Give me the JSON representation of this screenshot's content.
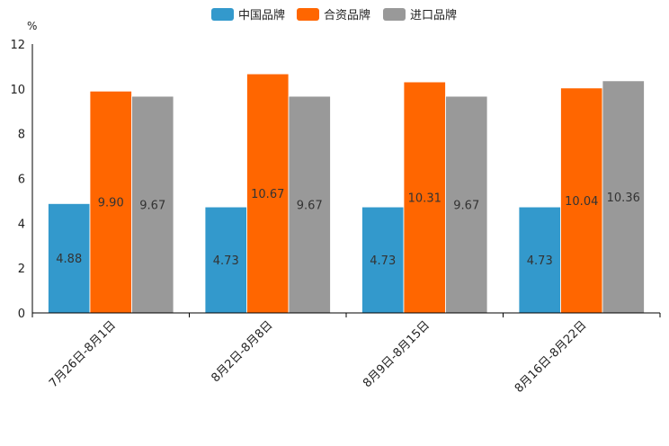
{
  "chart_data": {
    "type": "bar",
    "unit": "%",
    "categories": [
      "7月26日-8月1日",
      "8月2日-8月8日",
      "8月9日-8月15日",
      "8月16日-8月22日"
    ],
    "series": [
      {
        "name": "中国品牌",
        "color": "#3399CC",
        "values": [
          4.88,
          4.73,
          4.73,
          4.73
        ]
      },
      {
        "name": "合资品牌",
        "color": "#FF6600",
        "values": [
          9.9,
          10.67,
          10.31,
          10.04
        ]
      },
      {
        "name": "进口品牌",
        "color": "#999999",
        "values": [
          9.67,
          9.67,
          9.67,
          10.36
        ]
      }
    ],
    "value_labels": [
      [
        "4.88",
        "4.73",
        "4.73",
        "4.73"
      ],
      [
        "9.90",
        "10.67",
        "10.31",
        "10.04"
      ],
      [
        "9.67",
        "9.67",
        "9.67",
        "10.36"
      ]
    ],
    "ylim": [
      0,
      12
    ],
    "yticks": [
      0,
      2,
      4,
      6,
      8,
      10,
      12
    ],
    "ytick_labels": [
      "0",
      "2",
      "4",
      "6",
      "8",
      "10",
      "12"
    ],
    "legend_position": "top-center",
    "grid": false
  }
}
